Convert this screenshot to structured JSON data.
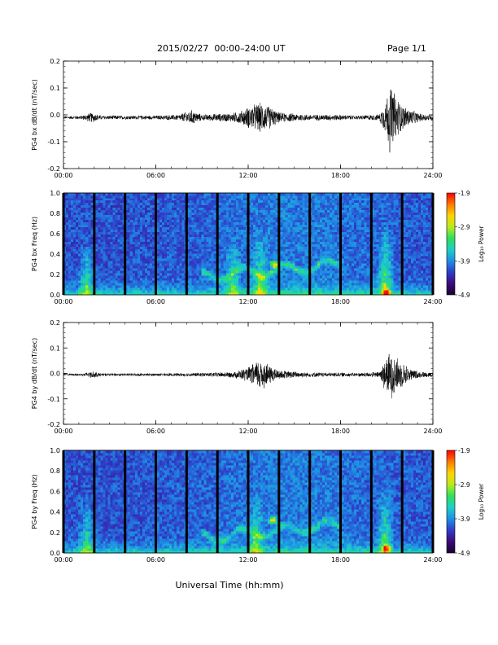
{
  "header": {
    "title": "2015/02/27  00:00–24:00 UT",
    "page": "Page 1/1"
  },
  "colors": {
    "trace": "#000000",
    "spectrogram_background": "#2a1a8c",
    "gap_bars": "#000000",
    "colorbar_stops": [
      "#1a0033",
      "#3d0a7a",
      "#2f3cc8",
      "#1e8fe6",
      "#1ccfc8",
      "#2ee05a",
      "#b8ec1c",
      "#ffd400",
      "#ff7a00",
      "#ff0000"
    ]
  },
  "chart_data": [
    {
      "type": "line",
      "panel": "bx-dbdt",
      "ylabel": "PG4 bx dB/dt (nT/sec)",
      "ylim": [
        -0.2,
        0.2
      ],
      "yticks": [
        "-0.2",
        "-0.1",
        "0.0",
        "0.1",
        "0.2"
      ],
      "xlim": [
        0,
        24
      ],
      "xticks": [
        "00:00",
        "06:00",
        "12:00",
        "18:00",
        "24:00"
      ],
      "baseline": -0.01,
      "envelope": {
        "hours": [
          0,
          1.2,
          1.8,
          2.5,
          6.0,
          7.5,
          8.3,
          9.0,
          11.0,
          11.7,
          12.2,
          12.8,
          13.4,
          14.0,
          16.0,
          17.5,
          19.0,
          20.5,
          20.9,
          21.2,
          21.5,
          22.0,
          22.6,
          23.2,
          24.0
        ],
        "amplitude": [
          0.005,
          0.008,
          0.02,
          0.008,
          0.008,
          0.012,
          0.03,
          0.012,
          0.018,
          0.03,
          0.05,
          0.06,
          0.045,
          0.02,
          0.012,
          0.012,
          0.008,
          0.012,
          0.06,
          0.14,
          0.1,
          0.05,
          0.03,
          0.015,
          0.012
        ]
      }
    },
    {
      "type": "heatmap",
      "panel": "bx-spectrogram",
      "ylabel": "PG4 bx Freq (Hz)",
      "ylim": [
        0.0,
        1.0
      ],
      "yticks": [
        "0.0",
        "0.2",
        "0.4",
        "0.6",
        "0.8",
        "1.0"
      ],
      "xlim": [
        0,
        24
      ],
      "xticks": [
        "00:00",
        "06:00",
        "12:00",
        "18:00",
        "24:00"
      ],
      "data_gaps_hours": [
        0.0,
        2.0,
        4.0,
        6.0,
        8.0,
        10.0,
        12.0,
        14.0,
        16.0,
        18.0,
        20.0,
        22.0,
        24.0
      ],
      "features": [
        {
          "kind": "burst",
          "hour": 1.5,
          "fmax": 0.55,
          "strength": 0.8
        },
        {
          "kind": "burst",
          "hour": 11.0,
          "fmax": 0.6,
          "strength": 0.7
        },
        {
          "kind": "burst",
          "hour": 12.8,
          "fmax": 0.65,
          "strength": 0.9
        },
        {
          "kind": "burst",
          "hour": 20.9,
          "fmax": 0.75,
          "strength": 1.0
        },
        {
          "kind": "band",
          "hour_start": 9.0,
          "hour_end": 18.0,
          "f_start": 0.18,
          "f_end": 0.3,
          "strength": 0.8
        },
        {
          "kind": "hotspot",
          "hour": 13.7,
          "freq": 0.3,
          "strength": 1.0
        },
        {
          "kind": "hotspot",
          "hour": 21.0,
          "freq": 0.02,
          "strength": 1.0
        }
      ],
      "colorbar": {
        "label": "Log₁₀ Power",
        "ticks": [
          "-1.9",
          "-2.9",
          "-3.9",
          "-4.9"
        ],
        "range": [
          -4.9,
          -1.9
        ]
      }
    },
    {
      "type": "line",
      "panel": "by-dbdt",
      "ylabel": "PG4 by dB/dt (nT/sec)",
      "ylim": [
        -0.2,
        0.2
      ],
      "yticks": [
        "-0.2",
        "-0.1",
        "0.0",
        "0.1",
        "0.2"
      ],
      "xlim": [
        0,
        24
      ],
      "xticks": [
        "00:00",
        "06:00",
        "12:00",
        "18:00",
        "24:00"
      ],
      "baseline": -0.005,
      "envelope": {
        "hours": [
          0,
          1.2,
          1.8,
          2.5,
          6.0,
          9.0,
          11.0,
          12.0,
          12.8,
          13.4,
          14.0,
          16.0,
          19.0,
          20.5,
          20.9,
          21.3,
          22.0,
          22.6,
          23.2,
          24.0
        ],
        "amplitude": [
          0.004,
          0.006,
          0.015,
          0.006,
          0.006,
          0.008,
          0.012,
          0.03,
          0.07,
          0.04,
          0.018,
          0.01,
          0.008,
          0.012,
          0.07,
          0.1,
          0.05,
          0.025,
          0.012,
          0.01
        ]
      }
    },
    {
      "type": "heatmap",
      "panel": "by-spectrogram",
      "ylabel": "PG4 by Freq (Hz)",
      "ylim": [
        0.0,
        1.0
      ],
      "yticks": [
        "0.0",
        "0.2",
        "0.4",
        "0.6",
        "0.8",
        "1.0"
      ],
      "xlim": [
        0,
        24
      ],
      "xticks": [
        "00:00",
        "06:00",
        "12:00",
        "18:00",
        "24:00"
      ],
      "data_gaps_hours": [
        0.0,
        2.0,
        4.0,
        6.0,
        8.0,
        10.0,
        12.0,
        14.0,
        16.0,
        18.0,
        20.0,
        22.0,
        24.0
      ],
      "features": [
        {
          "kind": "burst",
          "hour": 1.5,
          "fmax": 0.55,
          "strength": 0.8
        },
        {
          "kind": "burst",
          "hour": 12.5,
          "fmax": 0.6,
          "strength": 0.8
        },
        {
          "kind": "burst",
          "hour": 20.9,
          "fmax": 0.7,
          "strength": 0.9
        },
        {
          "kind": "band",
          "hour_start": 9.0,
          "hour_end": 18.0,
          "f_start": 0.15,
          "f_end": 0.28,
          "strength": 0.7
        },
        {
          "kind": "hotspot",
          "hour": 13.6,
          "freq": 0.32,
          "strength": 1.0
        },
        {
          "kind": "hotspot",
          "hour": 21.0,
          "freq": 0.05,
          "strength": 0.8
        }
      ],
      "colorbar": {
        "label": "Log₁₀ Power",
        "ticks": [
          "-1.9",
          "-2.9",
          "-3.9",
          "-4.9"
        ],
        "range": [
          -4.9,
          -1.9
        ]
      }
    }
  ],
  "footer": {
    "xlabel": "Universal Time (hh:mm)"
  }
}
